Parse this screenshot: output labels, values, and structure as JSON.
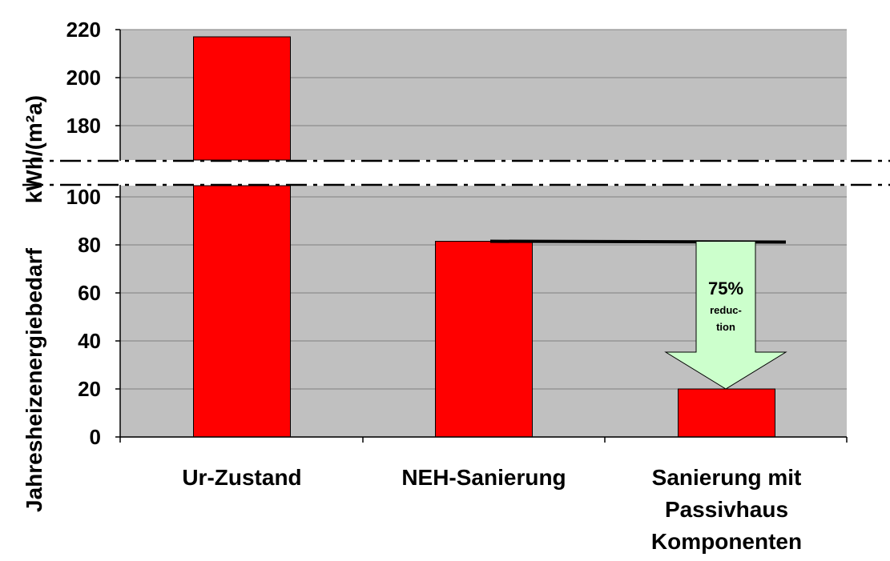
{
  "chart_data": {
    "type": "bar",
    "ylabel": "Jahresheizenergiebedarf kWh/(m²a)",
    "ylabel_main": "Jahresheizenergiebedarf",
    "ylabel_unit": "kWh/(m²a)",
    "categories": [
      [
        "Ur-Zustand"
      ],
      [
        "NEH-Sanierung"
      ],
      [
        "Sanierung mit",
        "Passivhaus",
        "Komponenten"
      ]
    ],
    "values": [
      217,
      81.5,
      20
    ],
    "y_ticks_lower": [
      "0",
      "20",
      "40",
      "60",
      "80",
      "100"
    ],
    "y_ticks_upper": [
      "180",
      "200",
      "220"
    ],
    "ylim_lower": [
      0,
      105
    ],
    "ylim_upper": [
      165,
      220
    ],
    "axis_break": true,
    "grid": true,
    "colors": {
      "bar": "#FF0000",
      "plot_bg": "#C0C0C0",
      "arrow": "#CCFFCC"
    },
    "annotation": {
      "percent": "75%",
      "text_line1": "reduc-",
      "text_line2": "tion",
      "from_value": 81.5,
      "to_value": 20
    }
  }
}
